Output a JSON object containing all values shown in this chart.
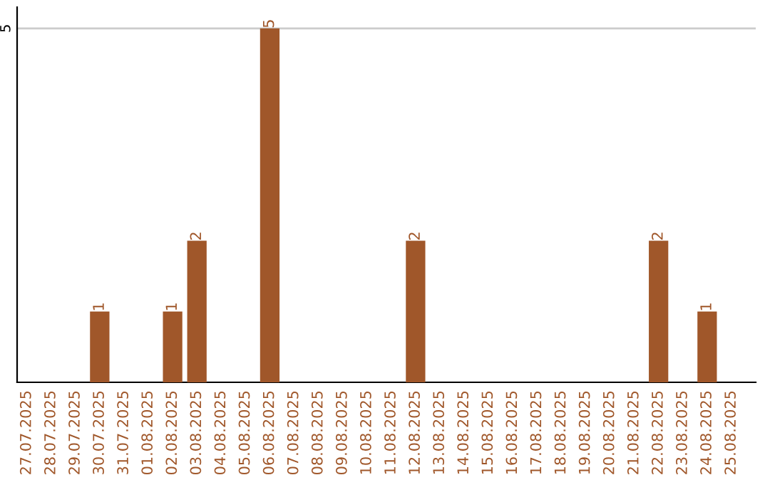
{
  "chart_data": {
    "type": "bar",
    "categories": [
      "27.07.2025",
      "28.07.2025",
      "29.07.2025",
      "30.07.2025",
      "31.07.2025",
      "01.08.2025",
      "02.08.2025",
      "03.08.2025",
      "04.08.2025",
      "05.08.2025",
      "06.08.2025",
      "07.08.2025",
      "08.08.2025",
      "09.08.2025",
      "10.08.2025",
      "11.08.2025",
      "12.08.2025",
      "13.08.2025",
      "14.08.2025",
      "15.08.2025",
      "16.08.2025",
      "17.08.2025",
      "18.08.2025",
      "19.08.2025",
      "20.08.2025",
      "21.08.2025",
      "22.08.2025",
      "23.08.2025",
      "24.08.2025",
      "25.08.2025"
    ],
    "values": [
      0,
      0,
      0,
      1,
      0,
      0,
      1,
      2,
      0,
      0,
      5,
      0,
      0,
      0,
      0,
      0,
      2,
      0,
      0,
      0,
      0,
      0,
      0,
      0,
      0,
      0,
      2,
      0,
      1,
      0
    ],
    "color": "#a0572a",
    "value_labels": [
      null,
      null,
      null,
      "1",
      null,
      null,
      "1",
      "2",
      null,
      null,
      "5",
      null,
      null,
      null,
      null,
      null,
      "2",
      null,
      null,
      null,
      null,
      null,
      null,
      null,
      null,
      null,
      "2",
      null,
      "1",
      null
    ],
    "ylim": [
      0,
      5.3
    ],
    "yticks": [
      5
    ],
    "grid": "y"
  }
}
